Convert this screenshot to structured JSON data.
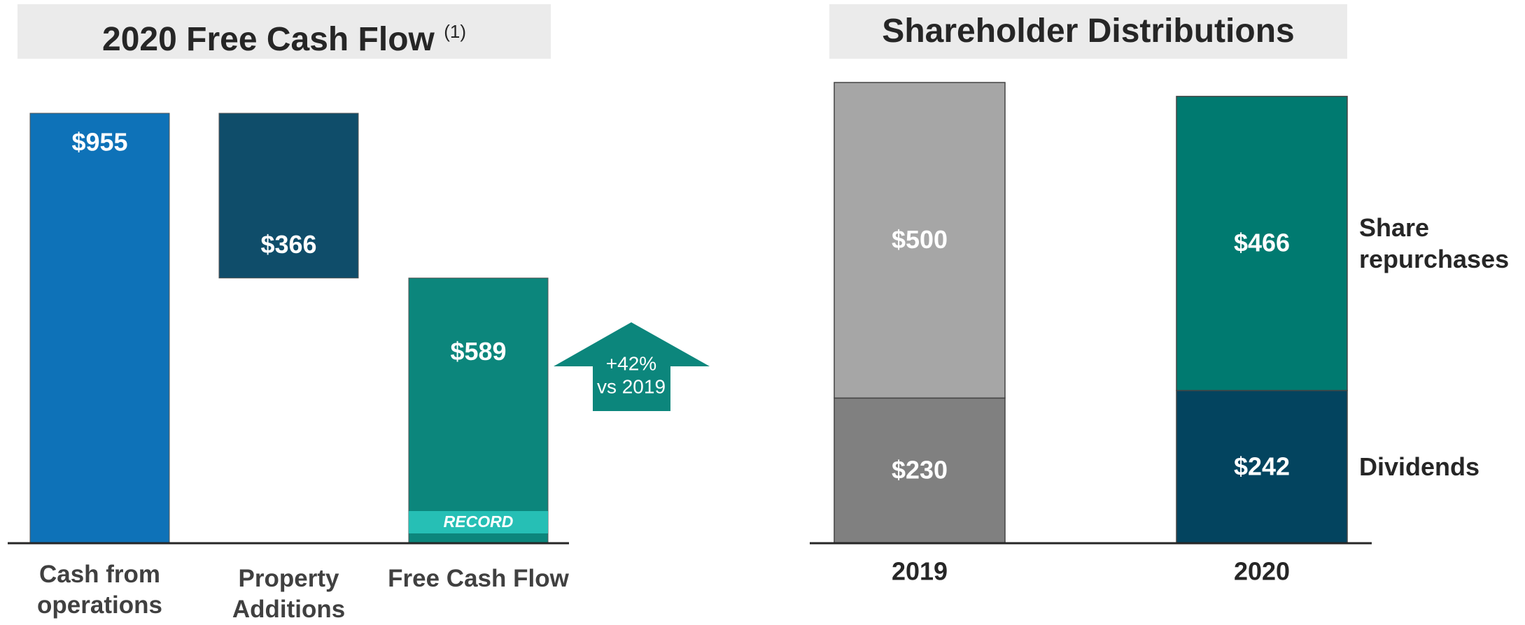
{
  "chart_data": [
    {
      "type": "waterfall",
      "title": "2020 Free Cash Flow",
      "title_note": "(1)",
      "categories": [
        "Cash from operations",
        "Property Additions",
        "Free Cash Flow"
      ],
      "values": [
        955,
        -366,
        589
      ],
      "value_labels": [
        "$955",
        "$366",
        "$589"
      ],
      "totals": [
        true,
        false,
        true
      ],
      "colors": [
        "#0e72b8",
        "#0f4d6a",
        "#0c867c"
      ],
      "annotations": [
        "+42%",
        "vs 2019",
        "RECORD"
      ]
    },
    {
      "type": "stacked_bar",
      "title": "Shareholder Distributions",
      "categories": [
        "2019",
        "2020"
      ],
      "series": [
        {
          "name": "Dividends",
          "colors": [
            "#808080",
            "#03445f"
          ],
          "values": [
            230,
            242
          ],
          "value_labels": [
            "$230",
            "$242"
          ]
        },
        {
          "name": "Share repurchases",
          "colors": [
            "#a6a6a6",
            "#007a70"
          ],
          "values": [
            500,
            466
          ],
          "value_labels": [
            "$500",
            "$466"
          ]
        }
      ]
    }
  ]
}
